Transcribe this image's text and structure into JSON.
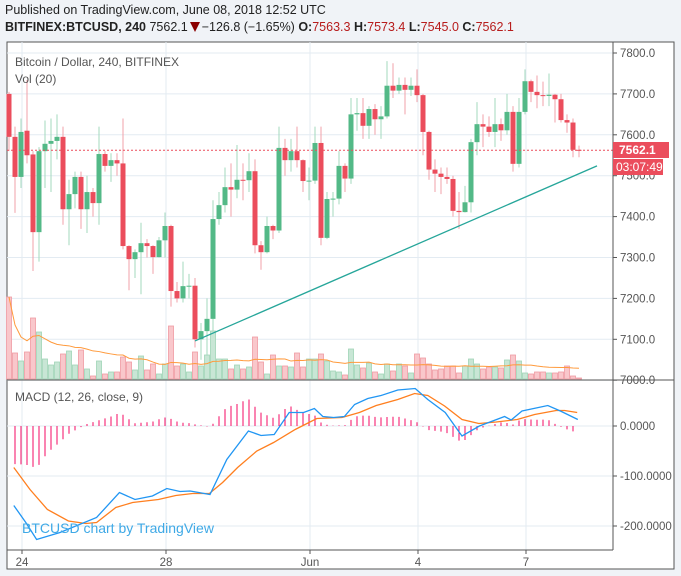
{
  "header": {
    "published": "Published on TradingView.com, June 08, 2018 12:52 UTC",
    "symbol": "BITFINEX:BTCUSD, 240",
    "last": "7562.1",
    "change": "−126.8 (−1.65%)",
    "o_label": "O:",
    "o_value": "7563.3",
    "h_label": "H:",
    "h_value": "7573.4",
    "l_label": "L:",
    "l_value": "7545.0",
    "c_label": "C:",
    "c_value": "7562.1",
    "direction_icon": "triangle-down-icon"
  },
  "colors": {
    "up": "#53b987",
    "down": "#eb4d5c",
    "vol_up": "#c8e6d5",
    "vol_down": "#f9c7cb",
    "macd": "#2196f3",
    "signal": "#ff7f1f",
    "hist": "#f50a63",
    "trendline": "#26a69a",
    "vol_ma": "#ff9a3c",
    "last_price": "#eb4d5c"
  },
  "chart_data": [
    {
      "type": "candlestick",
      "title": "Bitcoin / Dollar, 240, BITFINEX",
      "ylim": [
        7000,
        7800
      ],
      "y_ticks": [
        "7000.0",
        "7100.0",
        "7200.0",
        "7300.0",
        "7400.0",
        "7500.0",
        "7600.0",
        "7700.0",
        "7800.0"
      ],
      "x_ticks": [
        {
          "bar": 2,
          "label": "24"
        },
        {
          "bar": 26,
          "label": "28"
        },
        {
          "bar": 50,
          "label": "Jun"
        },
        {
          "bar": 68,
          "label": "4"
        },
        {
          "bar": 86,
          "label": "7"
        }
      ],
      "grid": true,
      "last_price_label": "7562.1",
      "countdown_label": "03:07:49",
      "ohlc": [
        [
          7700,
          7705,
          7560,
          7595
        ],
        [
          7595,
          7620,
          7409,
          7497
        ],
        [
          7497,
          7640,
          7470,
          7607
        ],
        [
          7610,
          7734,
          7530,
          7550
        ],
        [
          7552,
          7560,
          7267,
          7362
        ],
        [
          7362,
          7570,
          7290,
          7560
        ],
        [
          7560,
          7635,
          7470,
          7578
        ],
        [
          7578,
          7640,
          7460,
          7585
        ],
        [
          7585,
          7650,
          7540,
          7595
        ],
        [
          7595,
          7620,
          7380,
          7418
        ],
        [
          7418,
          7490,
          7330,
          7455
        ],
        [
          7455,
          7510,
          7420,
          7497
        ],
        [
          7497,
          7510,
          7370,
          7418
        ],
        [
          7418,
          7500,
          7360,
          7460
        ],
        [
          7460,
          7470,
          7400,
          7433
        ],
        [
          7433,
          7620,
          7380,
          7553
        ],
        [
          7553,
          7560,
          7510,
          7524
        ],
        [
          7524,
          7555,
          7485,
          7538
        ],
        [
          7538,
          7555,
          7500,
          7530
        ],
        [
          7530,
          7640,
          7320,
          7328
        ],
        [
          7328,
          7330,
          7220,
          7296
        ],
        [
          7296,
          7320,
          7250,
          7313
        ],
        [
          7313,
          7385,
          7210,
          7335
        ],
        [
          7335,
          7345,
          7300,
          7328
        ],
        [
          7328,
          7330,
          7260,
          7301
        ],
        [
          7301,
          7350,
          7300,
          7342
        ],
        [
          7342,
          7410,
          7300,
          7377
        ],
        [
          7377,
          7380,
          7180,
          7218
        ],
        [
          7218,
          7240,
          7190,
          7200
        ],
        [
          7200,
          7290,
          7190,
          7230
        ],
        [
          7230,
          7260,
          7200,
          7231
        ],
        [
          7231,
          7250,
          7080,
          7100
        ],
        [
          7100,
          7140,
          7050,
          7120
        ],
        [
          7120,
          7200,
          7060,
          7150
        ],
        [
          7150,
          7440,
          7120,
          7394
        ],
        [
          7394,
          7460,
          7380,
          7428
        ],
        [
          7428,
          7520,
          7410,
          7472
        ],
        [
          7472,
          7530,
          7400,
          7466
        ],
        [
          7466,
          7575,
          7445,
          7490
        ],
        [
          7490,
          7530,
          7440,
          7489
        ],
        [
          7489,
          7555,
          7460,
          7511
        ],
        [
          7511,
          7540,
          7310,
          7330
        ],
        [
          7330,
          7340,
          7270,
          7313
        ],
        [
          7313,
          7400,
          7310,
          7377
        ],
        [
          7377,
          7380,
          7345,
          7366
        ],
        [
          7366,
          7620,
          7360,
          7568
        ],
        [
          7568,
          7590,
          7500,
          7538
        ],
        [
          7538,
          7590,
          7510,
          7560
        ],
        [
          7560,
          7620,
          7520,
          7538
        ],
        [
          7538,
          7540,
          7460,
          7487
        ],
        [
          7487,
          7520,
          7440,
          7488
        ],
        [
          7488,
          7620,
          7480,
          7580
        ],
        [
          7580,
          7620,
          7330,
          7348
        ],
        [
          7348,
          7460,
          7345,
          7443
        ],
        [
          7443,
          7460,
          7400,
          7444
        ],
        [
          7444,
          7560,
          7430,
          7524
        ],
        [
          7524,
          7530,
          7460,
          7493
        ],
        [
          7493,
          7690,
          7480,
          7650
        ],
        [
          7650,
          7690,
          7610,
          7653
        ],
        [
          7653,
          7690,
          7590,
          7622
        ],
        [
          7622,
          7670,
          7590,
          7663
        ],
        [
          7663,
          7675,
          7600,
          7638
        ],
        [
          7638,
          7670,
          7590,
          7645
        ],
        [
          7645,
          7780,
          7640,
          7720
        ],
        [
          7720,
          7775,
          7690,
          7708
        ],
        [
          7708,
          7740,
          7700,
          7722
        ],
        [
          7722,
          7740,
          7650,
          7710
        ],
        [
          7710,
          7740,
          7695,
          7720
        ],
        [
          7720,
          7760,
          7680,
          7697
        ],
        [
          7697,
          7700,
          7550,
          7607
        ],
        [
          7607,
          7610,
          7490,
          7515
        ],
        [
          7515,
          7540,
          7460,
          7505
        ],
        [
          7505,
          7520,
          7455,
          7497
        ],
        [
          7497,
          7520,
          7480,
          7492
        ],
        [
          7492,
          7500,
          7400,
          7414
        ],
        [
          7414,
          7460,
          7370,
          7411
        ],
        [
          7411,
          7475,
          7410,
          7435
        ],
        [
          7435,
          7590,
          7410,
          7582
        ],
        [
          7582,
          7680,
          7550,
          7626
        ],
        [
          7626,
          7650,
          7570,
          7620
        ],
        [
          7620,
          7645,
          7595,
          7607
        ],
        [
          7607,
          7690,
          7570,
          7626
        ],
        [
          7626,
          7640,
          7585,
          7611
        ],
        [
          7611,
          7700,
          7600,
          7656
        ],
        [
          7656,
          7670,
          7510,
          7529
        ],
        [
          7529,
          7690,
          7520,
          7656
        ],
        [
          7656,
          7760,
          7650,
          7731
        ],
        [
          7731,
          7735,
          7680,
          7705
        ],
        [
          7705,
          7745,
          7665,
          7697
        ],
        [
          7697,
          7730,
          7670,
          7695
        ],
        [
          7695,
          7750,
          7670,
          7698
        ],
        [
          7698,
          7700,
          7630,
          7687
        ],
        [
          7687,
          7700,
          7630,
          7636
        ],
        [
          7636,
          7650,
          7605,
          7630
        ],
        [
          7630,
          7640,
          7545,
          7563.3
        ],
        [
          7563.3,
          7573.4,
          7545.0,
          7562.1
        ]
      ],
      "trendline": [
        {
          "bar": 31,
          "price": 7096
        },
        {
          "bar": 98,
          "price": 7524
        }
      ]
    },
    {
      "type": "bar",
      "title": "Vol (20)",
      "volume_relative": [
        82,
        26,
        18,
        27,
        61,
        47,
        20,
        14,
        17,
        25,
        28,
        14,
        29,
        10,
        3,
        18,
        5,
        7,
        7,
        22,
        17,
        9,
        23,
        9,
        15,
        5,
        15,
        53,
        13,
        15,
        7,
        27,
        13,
        24,
        48,
        20,
        20,
        10,
        14,
        10,
        12,
        42,
        17,
        5,
        24,
        13,
        13,
        12,
        26,
        12,
        20,
        20,
        25,
        18,
        8,
        7,
        4,
        30,
        14,
        11,
        16,
        7,
        5,
        15,
        8,
        15,
        13,
        6,
        25,
        21,
        15,
        9,
        10,
        13,
        13,
        6,
        13,
        20,
        15,
        10,
        12,
        12,
        11,
        19,
        24,
        18,
        6,
        5,
        7,
        7,
        6,
        6,
        7,
        13,
        3,
        1
      ],
      "ma_period": 20
    },
    {
      "type": "line",
      "title": "MACD (12, 26, close, 9)",
      "y_ticks": [
        "0.0000",
        "-100.0000",
        "-200.0000"
      ],
      "ylim": [
        -250,
        80
      ],
      "macd": [
        [
          0.8,
          -159
        ],
        [
          2.8,
          -193
        ],
        [
          4.6,
          -227
        ],
        [
          8.5,
          -213
        ],
        [
          14.6,
          -183
        ],
        [
          18.4,
          -133
        ],
        [
          21,
          -147
        ],
        [
          23.9,
          -140
        ],
        [
          26.3,
          -125
        ],
        [
          28.5,
          -131
        ],
        [
          30.2,
          -130
        ],
        [
          33.5,
          -137
        ],
        [
          36.3,
          -67
        ],
        [
          39.9,
          -10
        ],
        [
          42,
          -19
        ],
        [
          44.2,
          -17
        ],
        [
          46.7,
          27
        ],
        [
          49.1,
          27
        ],
        [
          50.9,
          35
        ],
        [
          52.3,
          19
        ],
        [
          54.1,
          17
        ],
        [
          55.9,
          19
        ],
        [
          57.6,
          43
        ],
        [
          59.8,
          55
        ],
        [
          62,
          61
        ],
        [
          64.8,
          72
        ],
        [
          67.7,
          75
        ],
        [
          69.8,
          53
        ],
        [
          72.7,
          27
        ],
        [
          75.5,
          -20
        ],
        [
          78.4,
          0
        ],
        [
          82.6,
          19
        ],
        [
          83.7,
          12
        ],
        [
          85.5,
          30
        ],
        [
          89.8,
          41
        ],
        [
          91.9,
          30
        ],
        [
          94.8,
          13
        ]
      ],
      "signal": [
        [
          0.8,
          -83
        ],
        [
          3.5,
          -127
        ],
        [
          6.4,
          -167
        ],
        [
          9.9,
          -190
        ],
        [
          12.8,
          -195
        ],
        [
          14.6,
          -193
        ],
        [
          17.8,
          -163
        ],
        [
          20.6,
          -153
        ],
        [
          24.9,
          -147
        ],
        [
          27.8,
          -139
        ],
        [
          30.6,
          -135
        ],
        [
          33.4,
          -135
        ],
        [
          35.6,
          -113
        ],
        [
          38.1,
          -83
        ],
        [
          41.3,
          -50
        ],
        [
          44.1,
          -33
        ],
        [
          47.7,
          -7
        ],
        [
          51.3,
          15
        ],
        [
          55.5,
          17
        ],
        [
          58.4,
          27
        ],
        [
          61.2,
          41
        ],
        [
          64.8,
          53
        ],
        [
          67.6,
          65
        ],
        [
          69.8,
          61
        ],
        [
          72.6,
          40
        ],
        [
          75.5,
          13
        ],
        [
          78.3,
          5
        ],
        [
          81.2,
          8
        ],
        [
          84.7,
          13
        ],
        [
          87.6,
          23
        ],
        [
          91.2,
          31
        ],
        [
          92.6,
          31
        ],
        [
          94.7,
          27
        ]
      ]
    }
  ],
  "watermark": "BTCUSD chart by TradingView"
}
